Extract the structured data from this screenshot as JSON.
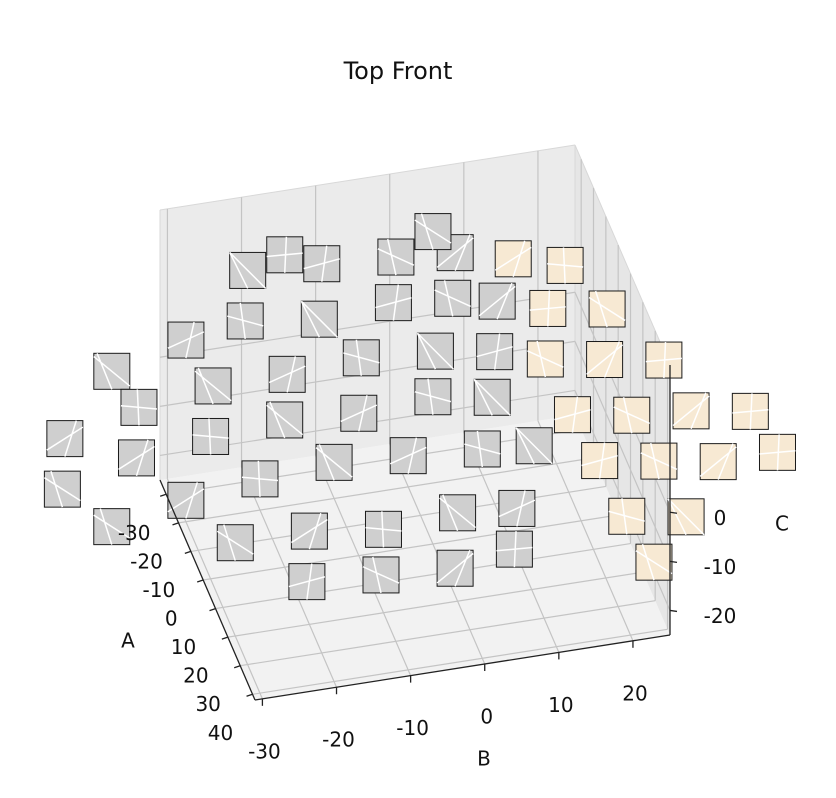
{
  "chart_data": {
    "type": "scatter3d",
    "title": "Top Front",
    "xlabel": "A",
    "ylabel": "B",
    "zlabel": "C",
    "xlim": [
      -35,
      42
    ],
    "ylim": [
      -31,
      25
    ],
    "zlim": [
      -25,
      30
    ],
    "xticks": [
      -30,
      -20,
      -10,
      0,
      10,
      20,
      30,
      40
    ],
    "yticks": [
      -30,
      -20,
      -10,
      0,
      10,
      20
    ],
    "zticks": [
      -20,
      -10,
      0
    ],
    "grid": true,
    "series": [
      {
        "color": "#cfcfcf",
        "x": [
          -30,
          -30,
          -30,
          -30,
          -30,
          -30,
          -20,
          -20,
          -20,
          -20,
          -20,
          -20,
          -20,
          -10,
          -10,
          -10,
          -10,
          -10,
          -10,
          -10,
          0,
          0,
          0,
          0,
          0,
          0,
          0,
          10,
          10,
          10,
          10,
          10,
          10,
          10,
          20,
          20,
          20,
          20,
          20,
          30,
          30,
          30,
          30
        ],
        "y": [
          -20,
          -10,
          0,
          8,
          -15,
          5,
          -40,
          -30,
          -22,
          -12,
          -2,
          6,
          12,
          -48,
          -38,
          -28,
          -18,
          -8,
          2,
          10,
          -50,
          -40,
          -30,
          -20,
          -10,
          0,
          8,
          -45,
          -35,
          -25,
          -15,
          -5,
          5,
          12,
          -30,
          -20,
          -10,
          0,
          8,
          -22,
          -12,
          -2,
          6
        ],
        "z": [
          18,
          17,
          16,
          15,
          20,
          20,
          8,
          12,
          14,
          12,
          13,
          12,
          10,
          2,
          6,
          8,
          8,
          9,
          8,
          6,
          -2,
          2,
          4,
          5,
          4,
          5,
          3,
          -5,
          -2,
          0,
          1,
          0,
          -1,
          -2,
          -6,
          -6,
          -8,
          -7,
          -8,
          -10,
          -11,
          -12,
          -10
        ]
      },
      {
        "color": "#f7e9d3",
        "x": [
          -25,
          -25,
          -15,
          -15,
          -5,
          -5,
          -5,
          5,
          5,
          5,
          5,
          15,
          15,
          15,
          15,
          25,
          25,
          35
        ],
        "y": [
          15,
          22,
          18,
          26,
          16,
          24,
          32,
          18,
          26,
          34,
          42,
          20,
          28,
          36,
          44,
          22,
          30,
          24
        ],
        "z": [
          15,
          12,
          10,
          8,
          6,
          4,
          2,
          0,
          -2,
          -3,
          -5,
          -4,
          -6,
          -8,
          -8,
          -10,
          -12,
          -14
        ]
      }
    ]
  }
}
